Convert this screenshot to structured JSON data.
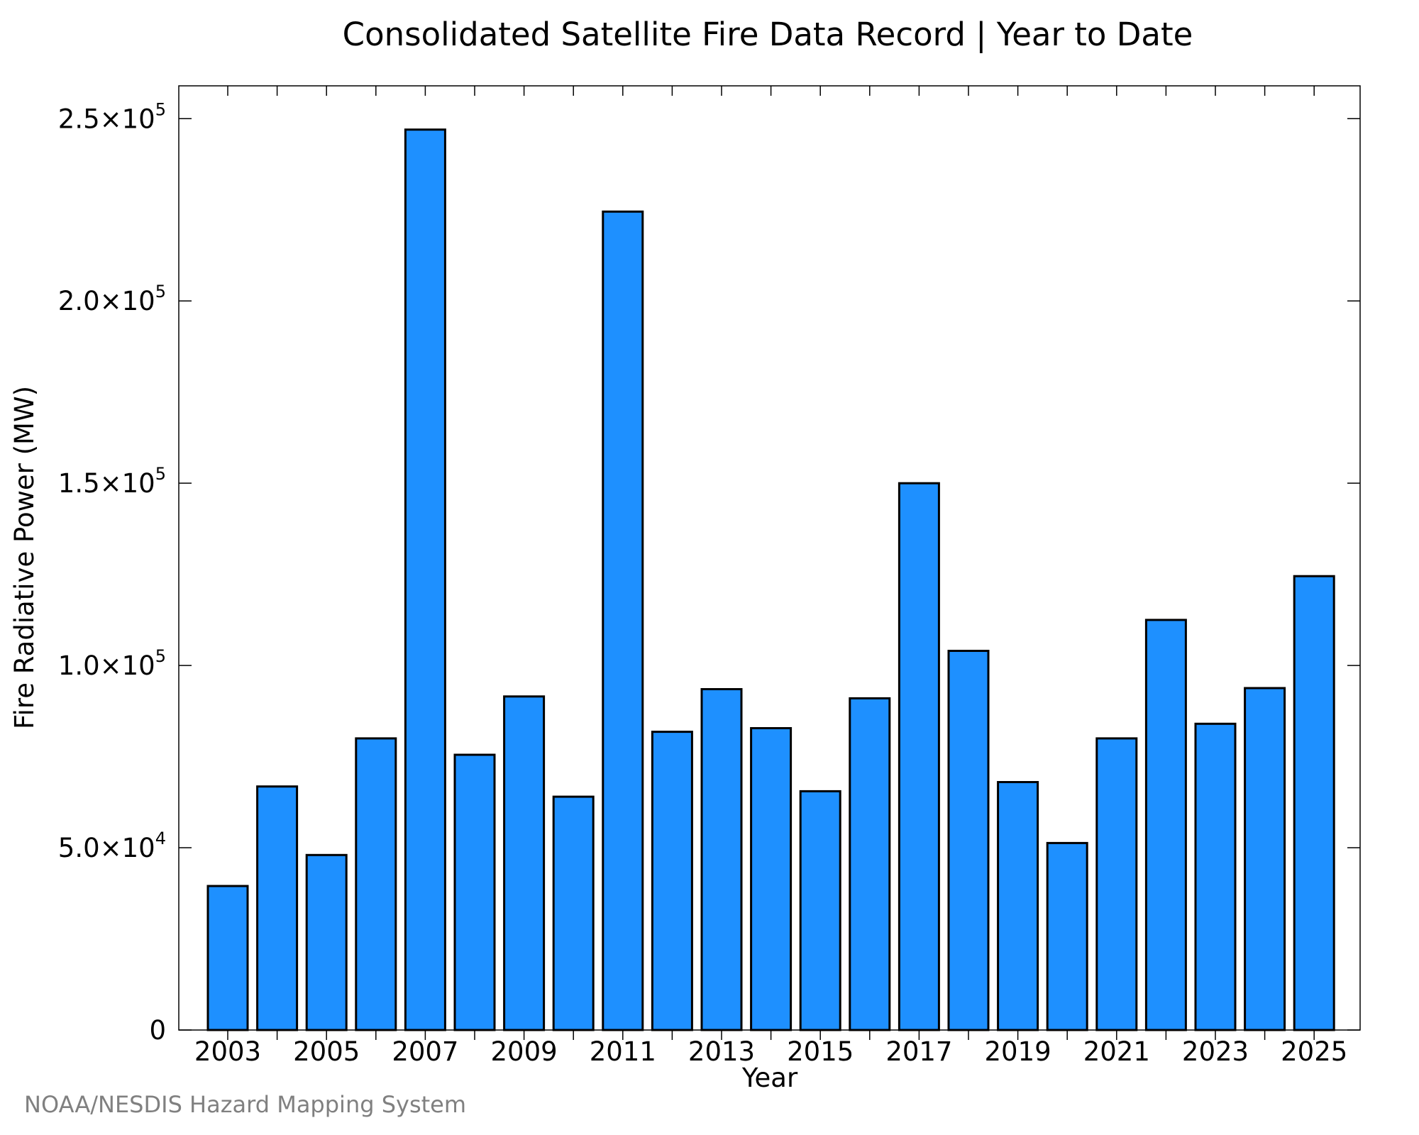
{
  "chart_data": {
    "type": "bar",
    "title": "Consolidated Satellite Fire Data Record | Year to Date",
    "xlabel": "Year",
    "ylabel": "Fire Radiative Power (MW)",
    "categories": [
      "2003",
      "2004",
      "2005",
      "2006",
      "2007",
      "2008",
      "2009",
      "2010",
      "2011",
      "2012",
      "2013",
      "2014",
      "2015",
      "2016",
      "2017",
      "2018",
      "2019",
      "2020",
      "2021",
      "2022",
      "2023",
      "2024",
      "2025"
    ],
    "values": [
      39500,
      66800,
      48000,
      80000,
      247000,
      75500,
      91500,
      64000,
      224500,
      81800,
      93500,
      82800,
      65500,
      91000,
      150000,
      104000,
      68000,
      51300,
      80000,
      112500,
      84000,
      93800,
      124500
    ],
    "x_tick_labels": [
      "2003",
      "2005",
      "2007",
      "2009",
      "2011",
      "2013",
      "2015",
      "2017",
      "2019",
      "2021",
      "2023",
      "2025"
    ],
    "y_ticks": [
      {
        "value": 0,
        "mantissa": "0",
        "exp": ""
      },
      {
        "value": 50000,
        "mantissa": "5.0×10",
        "exp": "4"
      },
      {
        "value": 100000,
        "mantissa": "1.0×10",
        "exp": "5"
      },
      {
        "value": 150000,
        "mantissa": "1.5×10",
        "exp": "5"
      },
      {
        "value": 200000,
        "mantissa": "2.0×10",
        "exp": "5"
      },
      {
        "value": 250000,
        "mantissa": "2.5×10",
        "exp": "5"
      }
    ],
    "ylim": [
      0,
      259000
    ],
    "grid": false,
    "bar_color": "#1E90FF",
    "bar_edge_color": "#000000"
  },
  "credit": "NOAA/NESDIS Hazard Mapping System"
}
